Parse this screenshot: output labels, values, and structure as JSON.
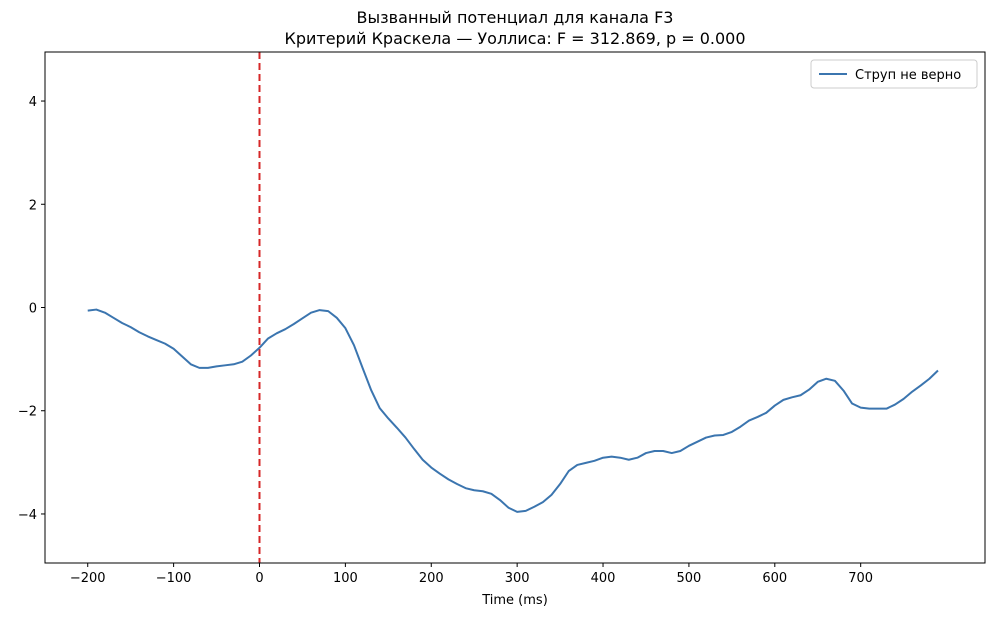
{
  "chart_data": {
    "type": "line",
    "title": "Вызванный потенциал для канала F3",
    "subtitle": "Критерий Краскела — Уоллиса: F = 312.869, p = 0.000",
    "x_label": "Time (ms)",
    "x": [
      -200,
      -190,
      -180,
      -170,
      -160,
      -150,
      -140,
      -130,
      -120,
      -110,
      -100,
      -90,
      -80,
      -70,
      -60,
      -50,
      -40,
      -30,
      -20,
      -10,
      0,
      10,
      20,
      30,
      40,
      50,
      60,
      70,
      80,
      90,
      100,
      110,
      120,
      130,
      140,
      150,
      160,
      170,
      180,
      190,
      200,
      210,
      220,
      230,
      240,
      250,
      260,
      270,
      280,
      290,
      300,
      310,
      320,
      330,
      340,
      350,
      360,
      370,
      380,
      390,
      400,
      410,
      420,
      430,
      440,
      450,
      460,
      470,
      480,
      490,
      500,
      510,
      520,
      530,
      540,
      550,
      560,
      570,
      580,
      590,
      600,
      610,
      620,
      630,
      640,
      650,
      660,
      670,
      680,
      690,
      700,
      710,
      720,
      730,
      740,
      750,
      760,
      770,
      780,
      790
    ],
    "series": [
      {
        "name": "Струп не верно",
        "color": "#3b75af",
        "values": [
          -0.06,
          -0.04,
          -0.1,
          -0.2,
          -0.3,
          -0.38,
          -0.48,
          -0.56,
          -0.63,
          -0.7,
          -0.8,
          -0.95,
          -1.1,
          -1.17,
          -1.17,
          -1.14,
          -1.12,
          -1.1,
          -1.05,
          -0.93,
          -0.78,
          -0.6,
          -0.5,
          -0.42,
          -0.32,
          -0.21,
          -0.1,
          -0.05,
          -0.07,
          -0.2,
          -0.4,
          -0.73,
          -1.17,
          -1.6,
          -1.95,
          -2.15,
          -2.33,
          -2.52,
          -2.74,
          -2.95,
          -3.1,
          -3.22,
          -3.33,
          -3.42,
          -3.5,
          -3.54,
          -3.56,
          -3.61,
          -3.73,
          -3.88,
          -3.96,
          -3.94,
          -3.86,
          -3.77,
          -3.63,
          -3.42,
          -3.17,
          -3.05,
          -3.01,
          -2.97,
          -2.91,
          -2.89,
          -2.91,
          -2.95,
          -2.91,
          -2.82,
          -2.78,
          -2.78,
          -2.82,
          -2.78,
          -2.68,
          -2.6,
          -2.52,
          -2.48,
          -2.47,
          -2.41,
          -2.31,
          -2.19,
          -2.12,
          -2.04,
          -1.9,
          -1.79,
          -1.74,
          -1.7,
          -1.59,
          -1.44,
          -1.38,
          -1.42,
          -1.61,
          -1.86,
          -1.94,
          -1.96,
          -1.96,
          -1.96,
          -1.88,
          -1.77,
          -1.63,
          -1.51,
          -1.38,
          -1.22
        ]
      }
    ],
    "xlim": [
      -249.75,
      844.75
    ],
    "ylim": [
      -4.95,
      4.95
    ],
    "xticks": [
      {
        "value": -200,
        "label": "−200"
      },
      {
        "value": -100,
        "label": "−100"
      },
      0,
      100,
      200,
      300,
      400,
      500,
      600,
      700
    ],
    "yticks": [
      {
        "value": -4,
        "label": "−4"
      },
      {
        "value": -2,
        "label": "−2"
      },
      0,
      2,
      4
    ],
    "vline": {
      "x": 0,
      "color": "#d62728"
    },
    "legend": "upper right",
    "grid": false
  }
}
